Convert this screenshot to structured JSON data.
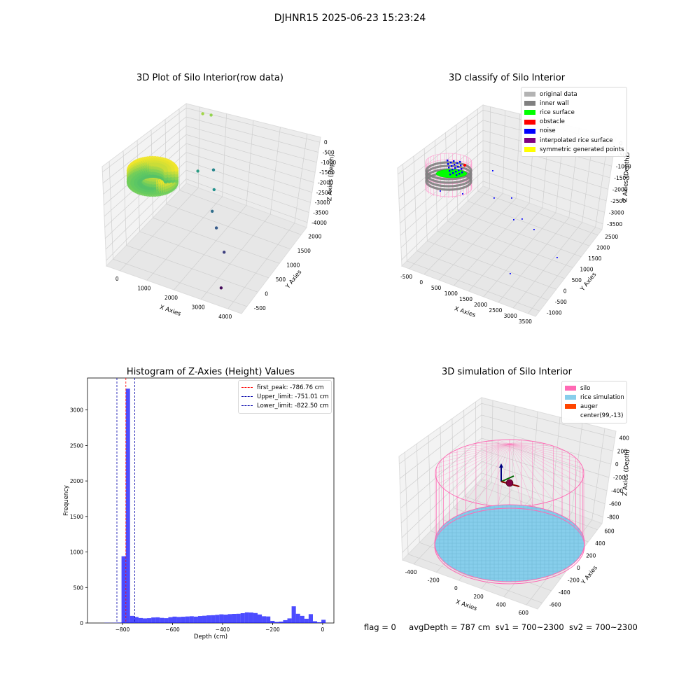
{
  "page": {
    "title": "DJHNR15 2025-06-23 15:23:24"
  },
  "status": {
    "flag": "flag = 0",
    "avg_depth": "avgDepth = 787 cm",
    "sv1": "sv1 = 700~2300",
    "sv2": "sv2 = 700~2300"
  },
  "chart_data": [
    {
      "type": "scatter3d",
      "title": "3D Plot of Silo Interior(row data)",
      "xlabel": "X Axies",
      "ylabel": "Y Axies",
      "zlabel": "Z Axies (Depth)",
      "x_ticks": [
        "0",
        "1000",
        "2000",
        "3000",
        "4000"
      ],
      "y_ticks": [
        "-500",
        "0",
        "500",
        "1000",
        "1500",
        "2000"
      ],
      "z_ticks": [
        "0",
        "-500",
        "-1000",
        "-1500",
        "-2000",
        "-2500",
        "-3000",
        "-3500",
        "-4000"
      ],
      "xlim": [
        -500,
        4000
      ],
      "ylim": [
        -600,
        2100
      ],
      "zlim": [
        -4100,
        100
      ],
      "colormap": "viridis",
      "cluster": {
        "description_points": 1,
        "x_range": [
          -200,
          400
        ],
        "y_range": [
          -300,
          300
        ],
        "z": -780
      },
      "outliers": [
        {
          "x": 700,
          "y": 1900,
          "z": -500
        },
        {
          "x": 900,
          "y": 2000,
          "z": -600
        },
        {
          "x": 1100,
          "y": 1200,
          "z": -1800
        },
        {
          "x": 1300,
          "y": 1600,
          "z": -2200
        },
        {
          "x": 1800,
          "y": 1000,
          "z": -2000
        },
        {
          "x": 1900,
          "y": 800,
          "z": -2600
        },
        {
          "x": 2200,
          "y": 600,
          "z": -2900
        },
        {
          "x": 2700,
          "y": 300,
          "z": -3300
        },
        {
          "x": 3000,
          "y": -200,
          "z": -4000
        }
      ]
    },
    {
      "type": "scatter3d",
      "title": "3D classify of Silo Interior",
      "xlabel": "X Axies",
      "ylabel": "Y Axies",
      "zlabel": "Z Axies (Depth)",
      "x_ticks": [
        "-500",
        "0",
        "500",
        "1000",
        "1500",
        "2000",
        "2500",
        "3000",
        "3500"
      ],
      "y_ticks": [
        "-1000",
        "-500",
        "0",
        "500",
        "1000",
        "1500",
        "2000",
        "2500"
      ],
      "z_ticks": [
        "0",
        "-500",
        "-1000",
        "-1500",
        "-2000",
        "-2500",
        "-3000",
        "-3500"
      ],
      "legend": [
        {
          "label": "original data",
          "color": "#b3b3b3"
        },
        {
          "label": "inner wall",
          "color": "#808080"
        },
        {
          "label": "rice surface",
          "color": "#00ff00"
        },
        {
          "label": "obstacle",
          "color": "#ff0000"
        },
        {
          "label": "noise",
          "color": "#0000ff"
        },
        {
          "label": "interpolated rice surface",
          "color": "#800080"
        },
        {
          "label": "symmetric generated points",
          "color": "#ffff00"
        }
      ],
      "legend_position": "top-right"
    },
    {
      "type": "bar",
      "title": "Histogram of Z-Axies (Height) Values",
      "xlabel": "Depth (cm)",
      "ylabel": "Frequency",
      "x_ticks": [
        -800,
        -600,
        -400,
        -200,
        0
      ],
      "y_ticks": [
        0,
        500,
        1000,
        1500,
        2000,
        2500,
        3000
      ],
      "xlim": [
        -940,
        45
      ],
      "ylim": [
        0,
        3450
      ],
      "bar_color": "#0000ff",
      "bin_width": 17,
      "bins": [
        [
          -872,
          3
        ],
        [
          -855,
          2
        ],
        [
          -838,
          4
        ],
        [
          -821,
          6
        ],
        [
          -804,
          940
        ],
        [
          -787,
          3300
        ],
        [
          -770,
          100
        ],
        [
          -753,
          85
        ],
        [
          -736,
          70
        ],
        [
          -719,
          65
        ],
        [
          -702,
          68
        ],
        [
          -685,
          78
        ],
        [
          -668,
          80
        ],
        [
          -651,
          72
        ],
        [
          -634,
          68
        ],
        [
          -617,
          82
        ],
        [
          -600,
          90
        ],
        [
          -583,
          85
        ],
        [
          -566,
          88
        ],
        [
          -549,
          92
        ],
        [
          -532,
          95
        ],
        [
          -515,
          90
        ],
        [
          -498,
          98
        ],
        [
          -481,
          102
        ],
        [
          -464,
          108
        ],
        [
          -447,
          110
        ],
        [
          -430,
          115
        ],
        [
          -413,
          122
        ],
        [
          -396,
          118
        ],
        [
          -379,
          125
        ],
        [
          -362,
          128
        ],
        [
          -345,
          130
        ],
        [
          -328,
          138
        ],
        [
          -311,
          150
        ],
        [
          -294,
          148
        ],
        [
          -277,
          140
        ],
        [
          -260,
          120
        ],
        [
          -243,
          95
        ],
        [
          -226,
          92
        ],
        [
          -209,
          30
        ],
        [
          -192,
          15
        ],
        [
          -175,
          20
        ],
        [
          -158,
          40
        ],
        [
          -141,
          65
        ],
        [
          -124,
          235
        ],
        [
          -107,
          130
        ],
        [
          -90,
          100
        ],
        [
          -73,
          60
        ],
        [
          -56,
          125
        ],
        [
          -39,
          25
        ],
        [
          -22,
          10
        ],
        [
          -5,
          45
        ]
      ],
      "lines": [
        {
          "label": "first_peak: -786.76 cm",
          "x": -786.76,
          "color": "#ff0000"
        },
        {
          "label": "Upper_limit: -751.01 cm",
          "x": -751.01,
          "color": "#0000aa"
        },
        {
          "label": "Lower_limit: -822.50 cm",
          "x": -822.5,
          "color": "#0000aa"
        }
      ],
      "legend_position": "top-right"
    },
    {
      "type": "surface3d",
      "title": "3D simulation of Silo Interior",
      "xlabel": "X Axies",
      "ylabel": "Y Axies",
      "zlabel": "Z Axies (Depth)",
      "x_ticks": [
        "-400",
        "-200",
        "0",
        "200",
        "400",
        "600"
      ],
      "y_ticks": [
        "-600",
        "-400",
        "-200",
        "0",
        "200",
        "400",
        "600"
      ],
      "z_ticks": [
        "400",
        "200",
        "0",
        "-200",
        "-400",
        "-600",
        "-800"
      ],
      "legend": [
        {
          "label": "silo",
          "color": "#ff69b4"
        },
        {
          "label": "rice simulation",
          "color": "#87ceeb"
        },
        {
          "label": "auger",
          "color": "#ff4500"
        },
        {
          "label": "center(99,-13)",
          "color": ""
        }
      ],
      "legend_position": "top-right"
    }
  ]
}
